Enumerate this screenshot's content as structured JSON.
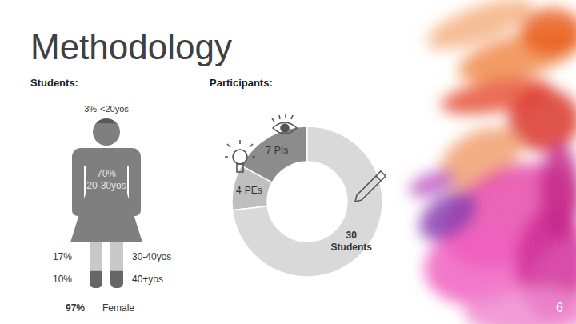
{
  "title": "Methodology",
  "page_number": 6,
  "chart_data": [
    {
      "type": "pictograph",
      "title": "Students:",
      "categories": [
        "<20yos",
        "20-30yos",
        "30-40yos",
        "40+yos"
      ],
      "values": [
        3,
        70,
        17,
        10
      ],
      "value_labels": [
        "3%",
        "70%",
        "17%",
        "10%"
      ],
      "colors": [
        "#595959",
        "#7f7f7f",
        "#c8c8c8",
        "#666666"
      ],
      "data_labels": true,
      "annotation": {
        "value": 97,
        "label": "97%",
        "text": "Female"
      }
    },
    {
      "type": "donut",
      "title": "Participants:",
      "categories": [
        "PIs",
        "PEs",
        "Students"
      ],
      "values": [
        7,
        4,
        30
      ],
      "colors": [
        "#8c8c8c",
        "#bfbfbf",
        "#d9d9d9"
      ],
      "data_labels": true
    }
  ]
}
